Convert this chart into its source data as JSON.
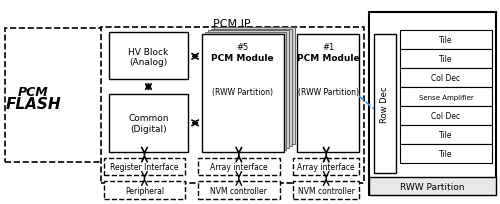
{
  "fig_width": 5.0,
  "fig_height": 2.05,
  "dpi": 100,
  "bg_color": "#ffffff",
  "title": "PCM IP",
  "hv_block_label": "HV Block\n(Analog)",
  "common_label": "Common\n(Digital)",
  "reg_iface_label": "Register Interface",
  "arr_iface1_label": "Array interface",
  "arr_iface2_label": "Array interface",
  "peripheral_label": "Peripheral",
  "nvm1_label": "NVM controller",
  "nvm2_label": "NVM controller",
  "row_dec_label": "Row Dec",
  "rww_partition_label": "RWW Partition",
  "tile_labels": [
    "Tile",
    "Tile",
    "Col Dec",
    "Sense Amplifier",
    "Col Dec",
    "Tile",
    "Tile"
  ]
}
